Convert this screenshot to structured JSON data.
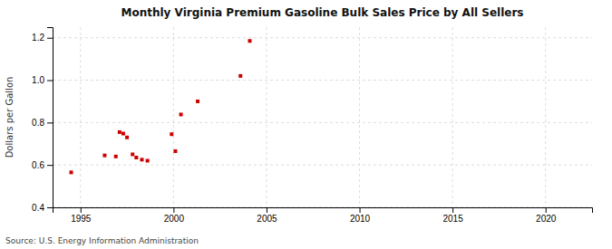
{
  "chart_data": {
    "type": "scatter",
    "title": "Monthly Virginia Premium Gasoline Bulk Sales Price by All Sellers",
    "ylabel": "Dollars per Gallon",
    "annotations": [
      "Source: U.S. Energy Information Administration"
    ],
    "x": [
      1994.5,
      1996.3,
      1996.9,
      1997.1,
      1997.3,
      1997.5,
      1997.8,
      1998.0,
      1998.3,
      1998.6,
      1999.9,
      2000.1,
      2000.4,
      2001.3,
      2003.6,
      2004.1
    ],
    "values": [
      0.565,
      0.645,
      0.64,
      0.755,
      0.748,
      0.73,
      0.65,
      0.635,
      0.625,
      0.62,
      0.745,
      0.665,
      0.838,
      0.9,
      1.02,
      1.185
    ],
    "color": "#cc0000",
    "marker": "square",
    "xlim": [
      1993.5,
      2022.5
    ],
    "ylim": [
      0.4,
      1.25
    ],
    "xticks": [
      1995,
      2000,
      2005,
      2010,
      2015,
      2020
    ],
    "yticks": [
      0.4,
      0.6,
      0.8,
      {
        "value": 1.0,
        "label": "1.0"
      },
      1.2
    ],
    "grid": true
  }
}
